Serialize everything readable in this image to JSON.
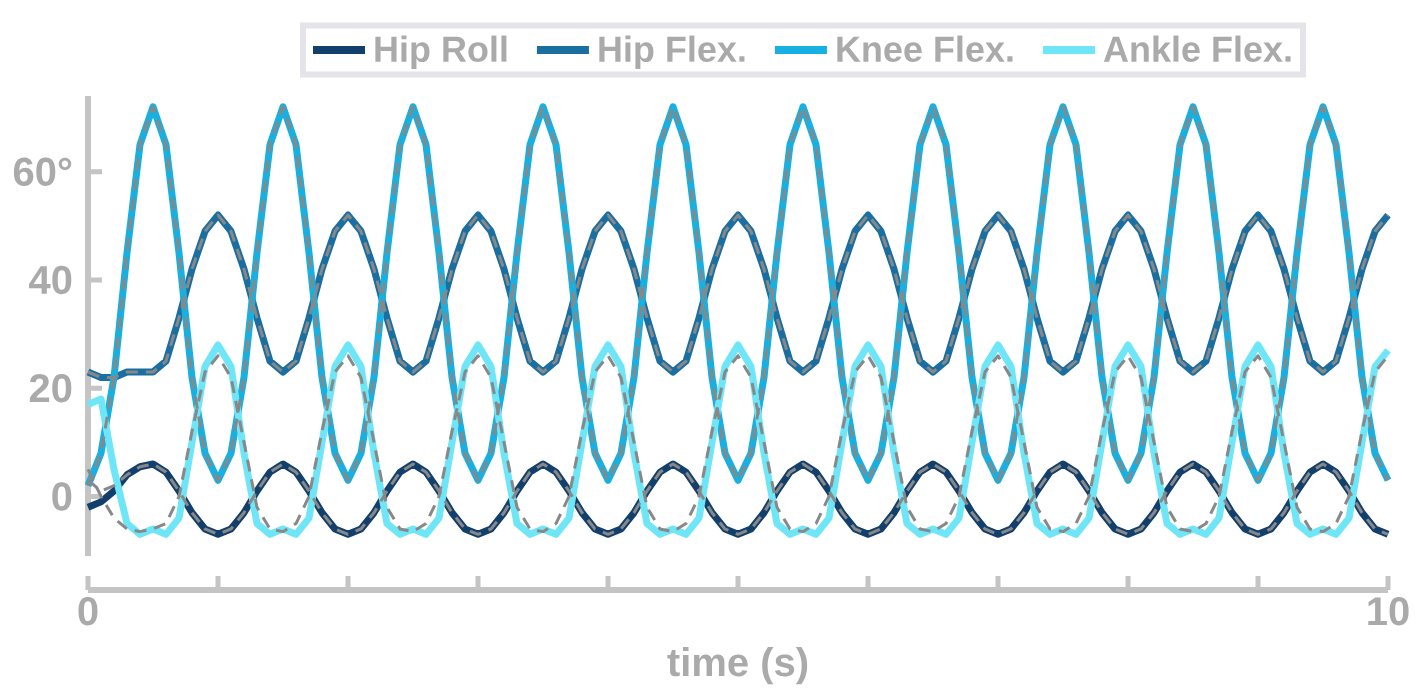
{
  "chart_data": {
    "type": "line",
    "xlabel": "time (s)",
    "legend": "top",
    "xlim": [
      0,
      10
    ],
    "ylim": [
      -11,
      74
    ],
    "xticks": [
      0,
      {
        "value": 1,
        "label": null
      },
      {
        "value": 2,
        "label": null
      },
      {
        "value": 3,
        "label": null
      },
      {
        "value": 4,
        "label": null
      },
      {
        "value": 5,
        "label": null
      },
      {
        "value": 6,
        "label": null
      },
      {
        "value": 7,
        "label": null
      },
      {
        "value": 8,
        "label": null
      },
      {
        "value": 9,
        "label": null
      },
      10
    ],
    "yticks": [
      0,
      20,
      40,
      {
        "value": 60,
        "label": "60°"
      }
    ],
    "x": [
      0,
      0.1,
      0.2,
      0.3,
      0.4,
      0.5,
      0.6,
      0.7,
      0.8,
      0.9,
      1,
      1.1,
      1.2,
      1.3,
      1.4,
      1.5,
      1.6,
      1.7,
      1.8,
      1.9,
      2,
      2.1,
      2.2,
      2.3,
      2.4,
      2.5,
      2.6,
      2.7,
      2.8,
      2.9,
      3,
      3.1,
      3.2,
      3.3,
      3.4,
      3.5,
      3.6,
      3.7,
      3.8,
      3.9,
      4,
      4.1,
      4.2,
      4.3,
      4.4,
      4.5,
      4.6,
      4.7,
      4.8,
      4.9,
      5,
      5.1,
      5.2,
      5.3,
      5.4,
      5.5,
      5.6,
      5.7,
      5.8,
      5.9,
      6,
      6.1,
      6.2,
      6.3,
      6.4,
      6.5,
      6.6,
      6.7,
      6.8,
      6.9,
      7,
      7.1,
      7.2,
      7.3,
      7.4,
      7.5,
      7.6,
      7.7,
      7.8,
      7.9,
      8,
      8.1,
      8.2,
      8.3,
      8.4,
      8.5,
      8.6,
      8.7,
      8.8,
      8.9,
      9,
      9.1,
      9.2,
      9.3,
      9.4,
      9.5,
      9.6,
      9.7,
      9.8,
      9.9,
      10
    ],
    "series": [
      {
        "name": "Hip Roll",
        "color": "#123f6b",
        "values": [
          -2,
          -1,
          1,
          4,
          5.5,
          6,
          4.5,
          1,
          -3,
          -6,
          -7,
          -6,
          -3,
          1,
          4.5,
          6,
          4.5,
          1,
          -3,
          -6,
          -7,
          -6,
          -3,
          1,
          4.5,
          6,
          4.5,
          1,
          -3,
          -6,
          -7,
          -6,
          -3,
          1,
          4.5,
          6,
          4.5,
          1,
          -3,
          -6,
          -7,
          -6,
          -3,
          1,
          4.5,
          6,
          4.5,
          1,
          -3,
          -6,
          -7,
          -6,
          -3,
          1,
          4.5,
          6,
          4.5,
          1,
          -3,
          -6,
          -7,
          -6,
          -3,
          1,
          4.5,
          6,
          4.5,
          1,
          -3,
          -6,
          -7,
          -6,
          -3,
          1,
          4.5,
          6,
          4.5,
          1,
          -3,
          -6,
          -7,
          -6,
          -3,
          1,
          4.5,
          6,
          4.5,
          1,
          -3,
          -6,
          -7,
          -6,
          -3,
          1,
          4.5,
          6,
          4.5,
          1,
          -3,
          -6,
          -7
        ]
      },
      {
        "name": "Hip Flex.",
        "color": "#1a6fa0",
        "values": [
          23,
          22,
          22,
          23,
          23,
          23,
          25,
          33,
          42,
          49,
          52,
          49,
          42,
          33,
          25,
          23,
          25,
          33,
          42,
          49,
          52,
          49,
          42,
          33,
          25,
          23,
          25,
          33,
          42,
          49,
          52,
          49,
          42,
          33,
          25,
          23,
          25,
          33,
          42,
          49,
          52,
          49,
          42,
          33,
          25,
          23,
          25,
          33,
          42,
          49,
          52,
          49,
          42,
          33,
          25,
          23,
          25,
          33,
          42,
          49,
          52,
          49,
          42,
          33,
          25,
          23,
          25,
          33,
          42,
          49,
          52,
          49,
          42,
          33,
          25,
          23,
          25,
          33,
          42,
          49,
          52,
          49,
          42,
          33,
          25,
          23,
          25,
          33,
          42,
          49,
          52,
          49,
          42,
          33,
          25,
          23,
          25,
          33,
          42,
          49,
          52
        ]
      },
      {
        "name": "Knee Flex.",
        "color": "#17b0e0",
        "values": [
          2,
          8,
          22,
          45,
          65,
          72,
          65,
          45,
          22,
          8,
          3,
          8,
          22,
          45,
          65,
          72,
          65,
          45,
          22,
          8,
          3,
          8,
          22,
          45,
          65,
          72,
          65,
          45,
          22,
          8,
          3,
          8,
          22,
          45,
          65,
          72,
          65,
          45,
          22,
          8,
          3,
          8,
          22,
          45,
          65,
          72,
          65,
          45,
          22,
          8,
          3,
          8,
          22,
          45,
          65,
          72,
          65,
          45,
          22,
          8,
          3,
          8,
          22,
          45,
          65,
          72,
          65,
          45,
          22,
          8,
          3,
          8,
          22,
          45,
          65,
          72,
          65,
          45,
          22,
          8,
          3,
          8,
          22,
          45,
          65,
          72,
          65,
          45,
          22,
          8,
          3,
          8,
          22,
          45,
          65,
          72,
          65,
          45,
          22,
          8,
          3
        ]
      },
      {
        "name": "Ankle Flex.",
        "color": "#6fe6f7",
        "values": [
          17,
          18,
          5,
          -5,
          -7,
          -6,
          -7,
          -4,
          10,
          24,
          28,
          24,
          8,
          -5,
          -7,
          -6,
          -7,
          -4,
          10,
          24,
          28,
          24,
          8,
          -5,
          -7,
          -6,
          -7,
          -4,
          10,
          24,
          28,
          24,
          8,
          -5,
          -7,
          -6,
          -7,
          -4,
          10,
          24,
          28,
          24,
          8,
          -5,
          -7,
          -6,
          -7,
          -4,
          10,
          24,
          28,
          24,
          8,
          -5,
          -7,
          -6,
          -7,
          -4,
          10,
          24,
          28,
          24,
          8,
          -5,
          -7,
          -6,
          -7,
          -4,
          10,
          24,
          28,
          24,
          8,
          -5,
          -7,
          -6,
          -7,
          -4,
          10,
          24,
          28,
          24,
          8,
          -5,
          -7,
          -6,
          -7,
          -4,
          10,
          24,
          28,
          24,
          8,
          -5,
          -7,
          -6,
          -7,
          -4,
          10,
          24,
          27
        ]
      },
      {
        "color": "#888888",
        "line_style": "dashed",
        "values": [
          3,
          1,
          2,
          4,
          5.5,
          6,
          4.5,
          1,
          -3,
          -6,
          -7,
          -6,
          -3,
          1,
          4.5,
          6,
          4.5,
          1,
          -3,
          -6,
          -7,
          -6,
          -3,
          1,
          4.5,
          6,
          4.5,
          1,
          -3,
          -6,
          -7,
          -6,
          -3,
          1,
          4.5,
          6,
          4.5,
          1,
          -3,
          -6,
          -7,
          -6,
          -3,
          1,
          4.5,
          6,
          4.5,
          1,
          -3,
          -6,
          -7,
          -6,
          -3,
          1,
          4.5,
          6,
          4.5,
          1,
          -3,
          -6,
          -7,
          -6,
          -3,
          1,
          4.5,
          6,
          4.5,
          1,
          -3,
          -6,
          -7,
          -6,
          -3,
          1,
          4.5,
          6,
          4.5,
          1,
          -3,
          -6,
          -7,
          -6,
          -3,
          1,
          4.5,
          6,
          4.5,
          1,
          -3,
          -6,
          -7,
          -6,
          -3,
          1,
          4.5,
          6,
          4.5,
          1,
          -3,
          -6,
          -7
        ]
      },
      {
        "color": "#888888",
        "line_style": "dashed",
        "values": [
          23,
          22,
          22,
          23,
          23,
          23,
          25,
          33,
          42,
          49,
          52,
          49,
          42,
          33,
          25,
          23,
          25,
          33,
          42,
          49,
          52,
          49,
          42,
          33,
          25,
          23,
          25,
          33,
          42,
          49,
          52,
          49,
          42,
          33,
          25,
          23,
          25,
          33,
          42,
          49,
          52,
          49,
          42,
          33,
          25,
          23,
          25,
          33,
          42,
          49,
          52,
          49,
          42,
          33,
          25,
          23,
          25,
          33,
          42,
          49,
          52,
          49,
          42,
          33,
          25,
          23,
          25,
          33,
          42,
          49,
          52,
          49,
          42,
          33,
          25,
          23,
          25,
          33,
          42,
          49,
          52,
          49,
          42,
          33,
          25,
          23,
          25,
          33,
          42,
          49,
          52,
          49,
          42,
          33,
          25,
          23,
          25,
          33,
          42,
          49,
          52
        ]
      },
      {
        "color": "#888888",
        "line_style": "dashed",
        "values": [
          2,
          8,
          22,
          45,
          65,
          72,
          65,
          45,
          22,
          8,
          3,
          8,
          22,
          45,
          65,
          72,
          65,
          45,
          22,
          8,
          3,
          8,
          22,
          45,
          65,
          72,
          65,
          45,
          22,
          8,
          3,
          8,
          22,
          45,
          65,
          72,
          65,
          45,
          22,
          8,
          3,
          8,
          22,
          45,
          65,
          72,
          65,
          45,
          22,
          8,
          3,
          8,
          22,
          45,
          65,
          72,
          65,
          45,
          22,
          8,
          3,
          8,
          22,
          45,
          65,
          72,
          65,
          45,
          22,
          8,
          3,
          8,
          22,
          45,
          65,
          72,
          65,
          45,
          22,
          8,
          3,
          8,
          22,
          45,
          65,
          72,
          65,
          45,
          22,
          8,
          3,
          8,
          22,
          45,
          65,
          72,
          65,
          45,
          22,
          8,
          3
        ]
      },
      {
        "color": "#888888",
        "line_style": "dashed",
        "values": [
          5,
          0,
          -4,
          -6,
          -6.5,
          -6,
          -5,
          0,
          12,
          23,
          26,
          22,
          10,
          -2,
          -6,
          -6.5,
          -5,
          0,
          12,
          23,
          26,
          22,
          10,
          -2,
          -6,
          -6.5,
          -5,
          0,
          12,
          23,
          26,
          22,
          10,
          -2,
          -6,
          -6.5,
          -5,
          0,
          12,
          23,
          26,
          22,
          10,
          -2,
          -6,
          -6.5,
          -5,
          0,
          12,
          23,
          26,
          22,
          10,
          -2,
          -6,
          -6.5,
          -5,
          0,
          12,
          23,
          26,
          22,
          10,
          -2,
          -6,
          -6.5,
          -5,
          0,
          12,
          23,
          26,
          22,
          10,
          -2,
          -6,
          -6.5,
          -5,
          0,
          12,
          23,
          26,
          22,
          10,
          -2,
          -6,
          -6.5,
          -5,
          0,
          12,
          23,
          26,
          22,
          10,
          -2,
          -6,
          -6.5,
          -5,
          0,
          12,
          23,
          26
        ]
      }
    ]
  }
}
